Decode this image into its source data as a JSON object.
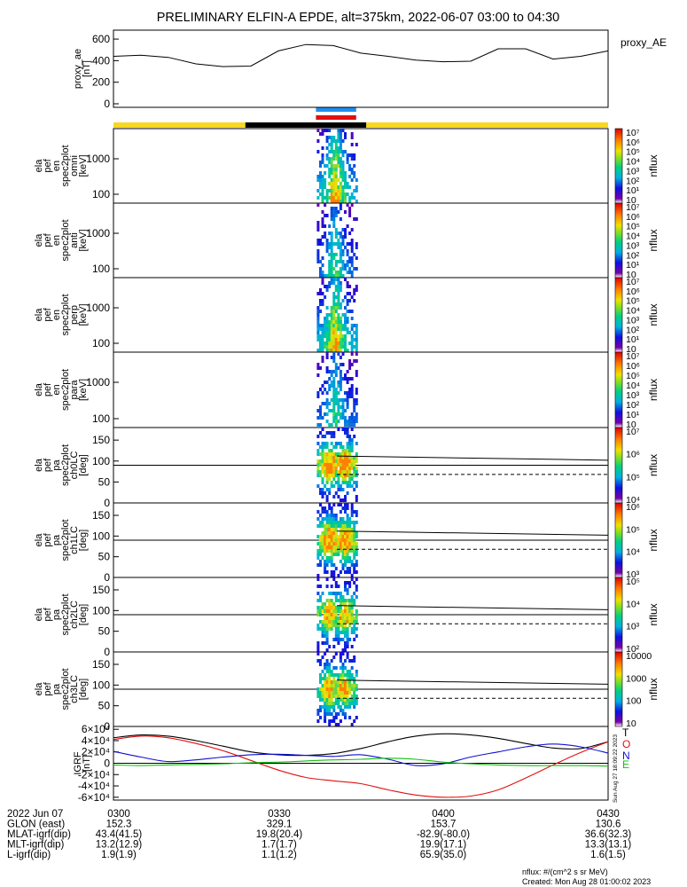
{
  "title": "PRELIMINARY ELFIN-A EPDE, alt=375km, 2022-06-07 03:00 to 04:30",
  "colors": {
    "bar_yellow": "#f8d820",
    "bar_black": "#000000",
    "mark_blue": "#1e8ff0",
    "mark_red": "#e01010",
    "comp_T": "#000000",
    "comp_O": "#e01010",
    "comp_N": "#1010d0",
    "comp_E": "#10c010"
  },
  "chart_data": [
    {
      "type": "line",
      "panel": "proxy_ae",
      "ylabel_lines": [
        "proxy_ae",
        "[nT]"
      ],
      "legend": "proxy_AE",
      "ylim": [
        0,
        650
      ],
      "yticks": [
        0,
        200,
        400,
        600
      ],
      "x": [
        "03:00",
        "03:05",
        "03:10",
        "03:15",
        "03:20",
        "03:25",
        "03:30",
        "03:35",
        "03:40",
        "03:45",
        "03:50",
        "03:55",
        "04:00",
        "04:05",
        "04:10",
        "04:15",
        "04:20",
        "04:25",
        "04:30"
      ],
      "values": [
        440,
        450,
        430,
        370,
        345,
        350,
        490,
        550,
        540,
        470,
        440,
        405,
        390,
        395,
        510,
        510,
        415,
        440,
        490
      ]
    },
    {
      "type": "heatmap",
      "panel": "omni",
      "ylabel_lines": [
        "ela",
        "pef",
        "en",
        "spec2plot",
        "omni",
        "[keV]"
      ],
      "scale": "log",
      "yticks": [
        "100",
        "1000"
      ],
      "colorbar_label": "nflux",
      "colorbar_ticks": [
        "10",
        "10¹",
        "10²",
        "10³",
        "10⁴",
        "10⁵",
        "10⁶",
        "10⁷"
      ],
      "activity_window": [
        "03:37",
        "03:44"
      ]
    },
    {
      "type": "heatmap",
      "panel": "anti",
      "ylabel_lines": [
        "ela",
        "pef",
        "en",
        "spec2plot",
        "anti",
        "[keV]"
      ],
      "scale": "log",
      "yticks": [
        "100",
        "1000"
      ],
      "colorbar_label": "nflux",
      "colorbar_ticks": [
        "10",
        "10¹",
        "10²",
        "10³",
        "10⁴",
        "10⁵",
        "10⁶",
        "10⁷"
      ],
      "activity_window": [
        "03:37",
        "03:44"
      ]
    },
    {
      "type": "heatmap",
      "panel": "perp",
      "ylabel_lines": [
        "ela",
        "pef",
        "en",
        "spec2plot",
        "perp",
        "[keV]"
      ],
      "scale": "log",
      "yticks": [
        "100",
        "1000"
      ],
      "colorbar_label": "nflux",
      "colorbar_ticks": [
        "10",
        "10¹",
        "10²",
        "10³",
        "10⁴",
        "10⁵",
        "10⁶",
        "10⁷"
      ],
      "activity_window": [
        "03:37",
        "03:44"
      ]
    },
    {
      "type": "heatmap",
      "panel": "para",
      "ylabel_lines": [
        "ela",
        "pef",
        "en",
        "spec2plot",
        "para",
        "[keV]"
      ],
      "scale": "log",
      "yticks": [
        "100",
        "1000"
      ],
      "colorbar_label": "nflux",
      "colorbar_ticks": [
        "10",
        "10¹",
        "10²",
        "10³",
        "10⁴",
        "10⁵",
        "10⁶",
        "10⁷"
      ],
      "activity_window": [
        "03:37",
        "03:44"
      ]
    },
    {
      "type": "heatmap",
      "panel": "ch0LC",
      "ylabel_lines": [
        "ela",
        "pef",
        "pa",
        "spec2plot",
        "ch0LC",
        "[deg]"
      ],
      "ylim": [
        0,
        180
      ],
      "yticks": [
        "0",
        "50",
        "100",
        "150"
      ],
      "colorbar_label": "nflux",
      "colorbar_ticks": [
        "10⁴",
        "10⁵",
        "10⁶",
        "10⁷"
      ],
      "activity_window": [
        "03:37",
        "03:44"
      ],
      "ref_line": 90,
      "loss_cone": {
        "x": [
          "03:40",
          "04:30"
        ],
        "solid": [
          112,
          102
        ],
        "dashed": [
          68,
          68
        ]
      }
    },
    {
      "type": "heatmap",
      "panel": "ch1LC",
      "ylabel_lines": [
        "ela",
        "pef",
        "pa",
        "spec2plot",
        "ch1LC",
        "[deg]"
      ],
      "ylim": [
        0,
        180
      ],
      "yticks": [
        "0",
        "50",
        "100",
        "150"
      ],
      "colorbar_label": "nflux",
      "colorbar_ticks": [
        "10³",
        "10⁴",
        "10⁵",
        "10⁶"
      ],
      "activity_window": [
        "03:37",
        "03:44"
      ],
      "ref_line": 90,
      "loss_cone": {
        "x": [
          "03:40",
          "04:30"
        ],
        "solid": [
          112,
          102
        ],
        "dashed": [
          68,
          68
        ]
      }
    },
    {
      "type": "heatmap",
      "panel": "ch2LC",
      "ylabel_lines": [
        "ela",
        "pef",
        "pa",
        "spec2plot",
        "ch2LC",
        "[deg]"
      ],
      "ylim": [
        0,
        180
      ],
      "yticks": [
        "0",
        "50",
        "100",
        "150"
      ],
      "colorbar_label": "nflux",
      "colorbar_ticks": [
        "10²",
        "10³",
        "10⁴",
        "10⁵"
      ],
      "activity_window": [
        "03:37",
        "03:44"
      ],
      "ref_line": 90,
      "loss_cone": {
        "x": [
          "03:40",
          "04:30"
        ],
        "solid": [
          112,
          102
        ],
        "dashed": [
          68,
          68
        ]
      }
    },
    {
      "type": "heatmap",
      "panel": "ch3LC",
      "ylabel_lines": [
        "ela",
        "pef",
        "pa",
        "spec2plot",
        "ch3LC",
        "[deg]"
      ],
      "ylim": [
        0,
        180
      ],
      "yticks": [
        "0",
        "50",
        "100",
        "150"
      ],
      "colorbar_label": "nflux",
      "colorbar_ticks": [
        "10",
        "100",
        "1000",
        "10000"
      ],
      "activity_window": [
        "03:37",
        "03:44"
      ],
      "ref_line": 90,
      "loss_cone": {
        "x": [
          "03:40",
          "04:30"
        ],
        "solid": [
          112,
          102
        ],
        "dashed": [
          68,
          68
        ]
      }
    },
    {
      "type": "line",
      "panel": "IGRF",
      "ylabel_lines": [
        "IGRF",
        "[nT]"
      ],
      "ylim": [
        -65000,
        65000
      ],
      "yticks": [
        "-6×10⁴",
        "-4×10⁴",
        "-2×10⁴",
        "0",
        "2×10⁴",
        "4×10⁴",
        "6×10⁴"
      ],
      "x": [
        "03:00",
        "03:05",
        "03:10",
        "03:15",
        "03:20",
        "03:25",
        "03:30",
        "03:35",
        "03:40",
        "03:45",
        "03:50",
        "03:55",
        "04:00",
        "04:05",
        "04:10",
        "04:15",
        "04:20",
        "04:25",
        "04:30"
      ],
      "series": [
        {
          "name": "T",
          "values": [
            45000,
            50000,
            48000,
            40000,
            30000,
            20000,
            15000,
            14000,
            17000,
            26000,
            38000,
            48000,
            52000,
            50000,
            44000,
            35000,
            27000,
            26000,
            38000
          ]
        },
        {
          "name": "O",
          "values": [
            42000,
            48000,
            45000,
            35000,
            22000,
            5000,
            -12000,
            -25000,
            -31000,
            -36000,
            -47000,
            -56000,
            -60000,
            -58000,
            -47000,
            -26000,
            -3000,
            19000,
            38000
          ]
        },
        {
          "name": "N",
          "values": [
            21000,
            11000,
            3000,
            6000,
            11000,
            15000,
            16000,
            14000,
            12000,
            15000,
            7000,
            -4000,
            -1000,
            11000,
            20000,
            29000,
            34000,
            29000,
            18000
          ]
        },
        {
          "name": "E",
          "values": [
            -3000,
            -4000,
            -3000,
            -2000,
            -1000,
            1000,
            2000,
            4000,
            6000,
            7000,
            9000,
            7000,
            2000,
            -1000,
            -3000,
            -4000,
            -4000,
            -4000,
            -5000
          ]
        }
      ]
    }
  ],
  "time_axis": {
    "start": "03:00",
    "end": "04:30",
    "orbit_bar": [
      {
        "from": "03:00",
        "to": "03:24",
        "color": "bar_yellow"
      },
      {
        "from": "03:24",
        "to": "03:46",
        "color": "bar_black"
      },
      {
        "from": "03:46",
        "to": "04:30",
        "color": "bar_yellow"
      }
    ],
    "markers": [
      {
        "from": "03:37",
        "to": "03:44",
        "color": "mark_blue"
      },
      {
        "from": "03:37",
        "to": "03:44",
        "color": "mark_red"
      }
    ]
  },
  "side_note": "Sun Aug 27 18:09:22 2023",
  "footer": {
    "rows": [
      {
        "label": "2022 Jun 07",
        "values": [
          "0300",
          "0330",
          "0400",
          "0430"
        ]
      },
      {
        "label": "GLON (east)",
        "values": [
          "152.3",
          "329.1",
          "153.7",
          "130.6"
        ]
      },
      {
        "label": "MLAT-igrf(dip)",
        "values": [
          "43.4(41.5)",
          "19.8(20.4)",
          "-82.9(-80.0)",
          "36.6(32.3)"
        ]
      },
      {
        "label": "MLT-igrf(dip)",
        "values": [
          "13.2(12.9)",
          "1.7(1.7)",
          "19.9(17.1)",
          "13.3(13.1)"
        ]
      },
      {
        "label": "L-igrf(dip)",
        "values": [
          "1.9(1.9)",
          "1.1(1.2)",
          "65.9(35.0)",
          "1.6(1.5)"
        ]
      }
    ],
    "units_note": "nflux: #/(cm^2 s sr MeV)",
    "created": "Created: Mon Aug 28 01:00:02 2023"
  }
}
